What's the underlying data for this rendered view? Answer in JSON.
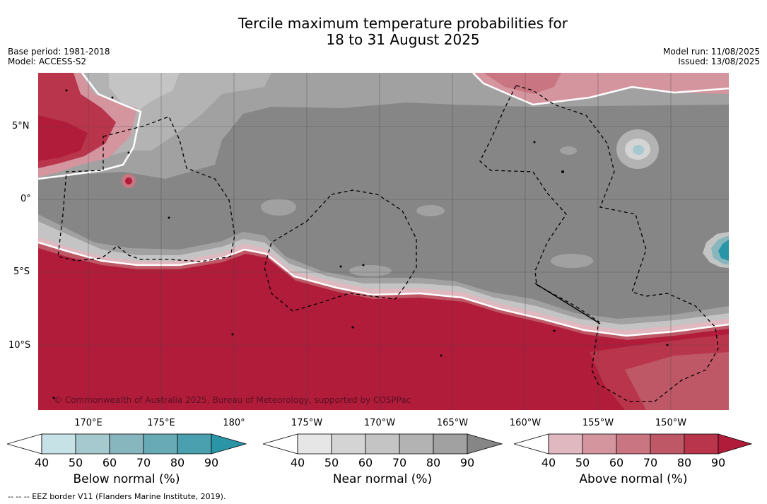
{
  "title": {
    "line1": "Tercile maximum temperature probabilities for",
    "line2": "18 to 31 August 2025"
  },
  "meta": {
    "base_period": "Base period: 1981-2018",
    "model": "Model: ACCESS-S2",
    "model_run": "Model run: 11/08/2025",
    "issued": "Issued: 13/08/2025"
  },
  "map": {
    "lat_labels": [
      "5°N",
      "0°",
      "5°S",
      "10°S"
    ],
    "lon_labels": [
      "170°E",
      "175°E",
      "180°",
      "175°W",
      "170°W",
      "165°W",
      "160°W",
      "155°W",
      "150°W"
    ],
    "credit": "© Commonwealth of Australia 2025, Bureau of Meteorology, supported by COSPPac",
    "colors": {
      "above_normal": "#b01c3a",
      "near_normal": "#868686",
      "below_normal": "#2b95a8",
      "boundary": "#ffffff"
    }
  },
  "colorbars": [
    {
      "title": "Below normal (%)",
      "ticks": [
        "40",
        "50",
        "60",
        "70",
        "80",
        "90"
      ],
      "colors": [
        "#ffffff",
        "#c7e2e7",
        "#a6c9cf",
        "#87b6bf",
        "#69aab7",
        "#4aa0ae",
        "#2b95a8"
      ]
    },
    {
      "title": "Near normal (%)",
      "ticks": [
        "40",
        "50",
        "60",
        "70",
        "80",
        "90"
      ],
      "colors": [
        "#ffffff",
        "#e6e6e6",
        "#d4d4d4",
        "#c4c4c4",
        "#b3b3b3",
        "#a1a1a1",
        "#868686"
      ]
    },
    {
      "title": "Above normal (%)",
      "ticks": [
        "40",
        "50",
        "60",
        "70",
        "80",
        "90"
      ],
      "colors": [
        "#ffffff",
        "#e0b8bf",
        "#d4959f",
        "#c97682",
        "#bf5866",
        "#b9354b",
        "#b01c3a"
      ]
    }
  ],
  "footnote": "--  --  -- EEZ border V11 (Flanders Marine Institute, 2019)."
}
